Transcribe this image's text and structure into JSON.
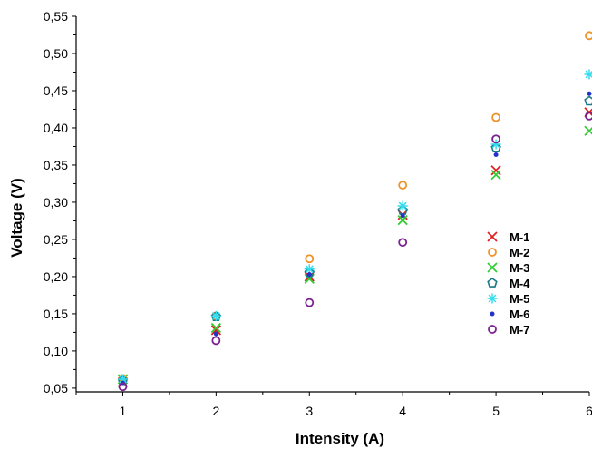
{
  "chart_data": {
    "type": "scatter",
    "title": "",
    "xlabel": "Intensity (A)",
    "ylabel": "Voltage (V)",
    "xlim": [
      0.5,
      6.0
    ],
    "ylim": [
      0.045,
      0.55
    ],
    "x_ticks": [
      {
        "value": 1,
        "label": "1"
      },
      {
        "value": 2,
        "label": "2"
      },
      {
        "value": 3,
        "label": "3"
      },
      {
        "value": 4,
        "label": "4"
      },
      {
        "value": 5,
        "label": "5"
      },
      {
        "value": 6,
        "label": "6"
      }
    ],
    "y_ticks": [
      {
        "value": 0.05,
        "label": "0,05"
      },
      {
        "value": 0.1,
        "label": "0,10"
      },
      {
        "value": 0.15,
        "label": "0,15"
      },
      {
        "value": 0.2,
        "label": "0,20"
      },
      {
        "value": 0.25,
        "label": "0,25"
      },
      {
        "value": 0.3,
        "label": "0,30"
      },
      {
        "value": 0.35,
        "label": "0,35"
      },
      {
        "value": 0.4,
        "label": "0,40"
      },
      {
        "value": 0.45,
        "label": "0,45"
      },
      {
        "value": 0.5,
        "label": "0,50"
      },
      {
        "value": 0.55,
        "label": "0,55"
      }
    ],
    "grid": false,
    "legend_position": "right-middle",
    "series": [
      {
        "name": "M-1",
        "marker": "x",
        "color": "#e02020",
        "points": [
          [
            1,
            0.058
          ],
          [
            2,
            0.128
          ],
          [
            3,
            0.2
          ],
          [
            4,
            0.283
          ],
          [
            5,
            0.343
          ],
          [
            6,
            0.421
          ]
        ]
      },
      {
        "name": "M-2",
        "marker": "circle",
        "color": "#f0922b",
        "points": [
          [
            1,
            0.063
          ],
          [
            2,
            0.147
          ],
          [
            3,
            0.224
          ],
          [
            4,
            0.323
          ],
          [
            5,
            0.414
          ],
          [
            6,
            0.524
          ]
        ]
      },
      {
        "name": "M-3",
        "marker": "x",
        "color": "#33cc33",
        "points": [
          [
            1,
            0.062
          ],
          [
            2,
            0.131
          ],
          [
            3,
            0.197
          ],
          [
            4,
            0.276
          ],
          [
            5,
            0.337
          ],
          [
            6,
            0.396
          ]
        ]
      },
      {
        "name": "M-4",
        "marker": "pentagon",
        "color": "#1a7a8a",
        "points": [
          [
            1,
            0.06
          ],
          [
            2,
            0.146
          ],
          [
            3,
            0.205
          ],
          [
            4,
            0.289
          ],
          [
            5,
            0.373
          ],
          [
            6,
            0.436
          ]
        ]
      },
      {
        "name": "M-5",
        "marker": "asterisk",
        "color": "#33ddee",
        "points": [
          [
            1,
            0.062
          ],
          [
            2,
            0.147
          ],
          [
            3,
            0.21
          ],
          [
            4,
            0.295
          ],
          [
            5,
            0.378
          ],
          [
            6,
            0.472
          ]
        ]
      },
      {
        "name": "M-6",
        "marker": "dot",
        "color": "#2233cc",
        "points": [
          [
            1,
            0.057
          ],
          [
            2,
            0.123
          ],
          [
            3,
            0.203
          ],
          [
            4,
            0.282
          ],
          [
            5,
            0.364
          ],
          [
            6,
            0.446
          ]
        ]
      },
      {
        "name": "M-7",
        "marker": "circle",
        "color": "#7a2290",
        "points": [
          [
            1,
            0.052
          ],
          [
            2,
            0.114
          ],
          [
            3,
            0.165
          ],
          [
            4,
            0.246
          ],
          [
            5,
            0.385
          ],
          [
            6,
            0.416
          ]
        ]
      }
    ]
  }
}
